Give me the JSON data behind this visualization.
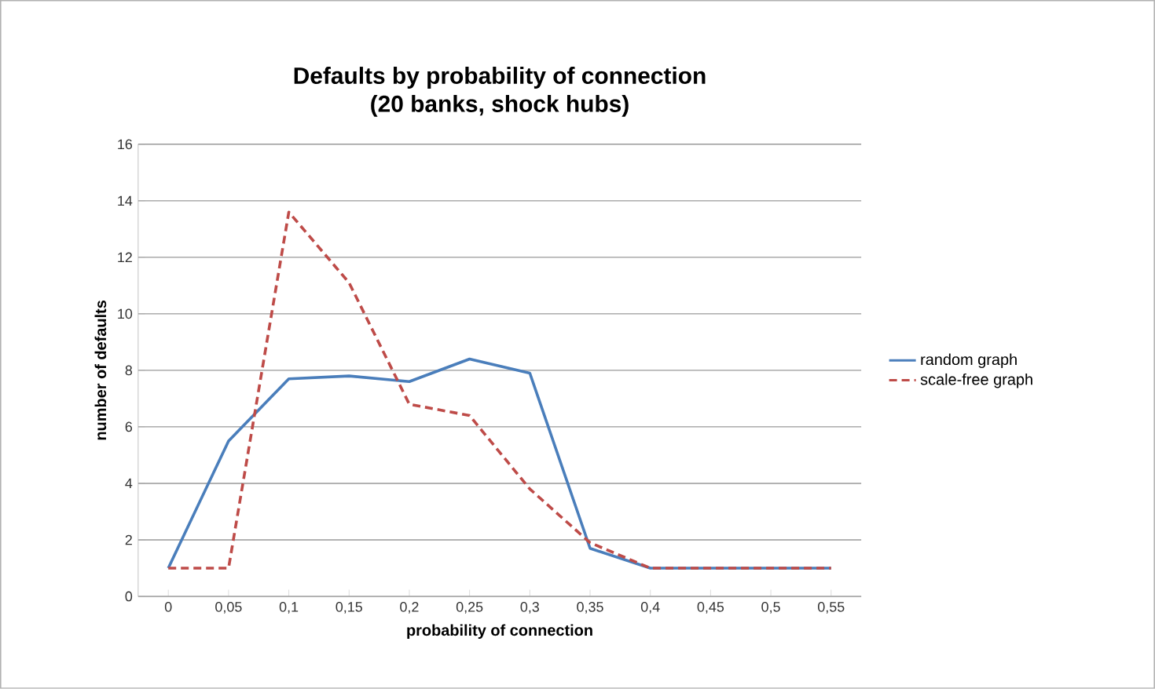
{
  "chart_data": {
    "type": "line",
    "title": "Defaults by probability of connection\n(20 banks, shock hubs)",
    "xlabel": "probability of connection",
    "ylabel": "number of defaults",
    "categories": [
      "0",
      "0,05",
      "0,1",
      "0,15",
      "0,2",
      "0,25",
      "0,3",
      "0,35",
      "0,4",
      "0,45",
      "0,5",
      "0,55"
    ],
    "series": [
      {
        "name": "random graph",
        "color": "#4a7ebb",
        "line_style": "solid",
        "values": [
          1,
          5.5,
          7.7,
          7.8,
          7.6,
          8.4,
          7.9,
          1.7,
          1,
          1,
          1,
          1
        ]
      },
      {
        "name": "scale-free graph",
        "color": "#be4b48",
        "line_style": "dashed",
        "values": [
          1,
          1,
          13.6,
          11.1,
          6.8,
          6.4,
          3.8,
          1.9,
          1,
          1,
          1,
          1
        ]
      }
    ],
    "ylim": [
      0,
      16
    ],
    "yticks": [
      0,
      2,
      4,
      6,
      8,
      10,
      12,
      14,
      16
    ],
    "grid": "y",
    "legend": "right",
    "marker": "none"
  }
}
